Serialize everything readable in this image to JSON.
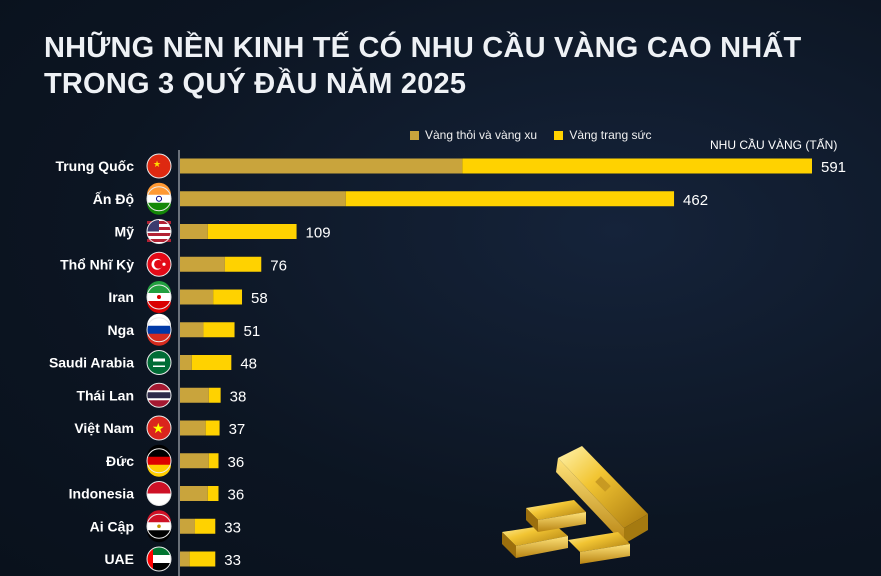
{
  "title_line1": "NHỮNG NỀN KINH TẾ CÓ NHU CẦU VÀNG CAO NHẤT",
  "title_line2": "TRONG 3 QUÝ ĐẦU NĂM 2025",
  "colors": {
    "bar_coin": "#c9a43c",
    "jewelry": "#ffd200",
    "background": "#0c1522"
  },
  "chart_data": {
    "type": "bar",
    "orientation": "horizontal",
    "stacked": true,
    "unit_label": "NHU CẦU VÀNG (TẤN)",
    "legend_position": "top-right",
    "series": [
      {
        "name": "Vàng thỏi và vàng xu",
        "values": [
          264,
          155,
          26,
          42,
          31,
          22,
          11,
          27,
          24,
          27,
          26,
          14,
          9
        ]
      },
      {
        "name": "Vàng trang sức",
        "values": [
          327,
          307,
          83,
          34,
          27,
          29,
          37,
          11,
          13,
          9,
          10,
          19,
          24
        ]
      }
    ],
    "categories": [
      "Trung Quốc",
      "Ấn Độ",
      "Mỹ",
      "Thổ Nhĩ Kỳ",
      "Iran",
      "Nga",
      "Saudi Arabia",
      "Thái Lan",
      "Việt Nam",
      "Đức",
      "Indonesia",
      "Ai Cập",
      "UAE"
    ],
    "flags": [
      "china-flag-icon",
      "india-flag-icon",
      "usa-flag-icon",
      "turkey-flag-icon",
      "iran-flag-icon",
      "russia-flag-icon",
      "saudi-flag-icon",
      "thailand-flag-icon",
      "vietnam-flag-icon",
      "germany-flag-icon",
      "indonesia-flag-icon",
      "egypt-flag-icon",
      "uae-flag-icon"
    ],
    "totals": [
      591,
      462,
      109,
      76,
      58,
      51,
      48,
      38,
      37,
      36,
      36,
      33,
      33
    ],
    "xlim": [
      0,
      591
    ]
  }
}
